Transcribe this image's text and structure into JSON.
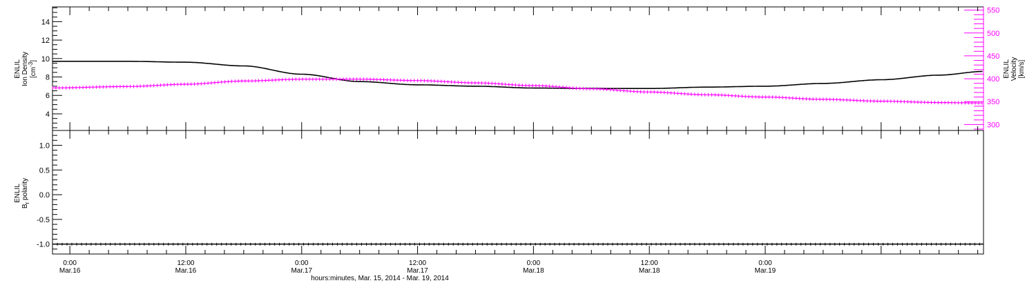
{
  "chart_data": [
    {
      "type": "line",
      "panel": "top",
      "y_label": [
        "ENLIL",
        "Ion Density",
        "[cm",
        "-3",
        "]"
      ],
      "y2_label": [
        "ENLIL",
        "Velocity",
        "[km/s]"
      ],
      "ylim": [
        2.2,
        15.6
      ],
      "y_ticks": [
        "4",
        "6",
        "8",
        "10",
        "12",
        "14"
      ],
      "y2lim": [
        287,
        557
      ],
      "y2_ticks": [
        "300",
        "350",
        "400",
        "450",
        "500",
        "550"
      ],
      "xlim_hours": [
        -1.8,
        94.6
      ],
      "series": [
        {
          "color": "#000000",
          "axis": "left",
          "x": [
            -1.8,
            6,
            12,
            18,
            24,
            30,
            36,
            42,
            48,
            54,
            60,
            66,
            72,
            78,
            84,
            90,
            94.6
          ],
          "y": [
            9.7,
            9.7,
            9.6,
            9.2,
            8.3,
            7.5,
            7.15,
            7.0,
            6.8,
            6.75,
            6.75,
            6.9,
            7.0,
            7.3,
            7.7,
            8.2,
            8.6
          ]
        },
        {
          "color": "#ff00ff",
          "axis": "right",
          "x": [
            -1.8,
            6,
            12,
            18,
            24,
            30,
            36,
            42,
            48,
            54,
            60,
            66,
            72,
            78,
            84,
            90,
            94.6
          ],
          "y": [
            380,
            383,
            388,
            395,
            399,
            399,
            396,
            391,
            385,
            378,
            371,
            365,
            360,
            355,
            351,
            348,
            347
          ]
        }
      ]
    },
    {
      "type": "line",
      "panel": "bottom",
      "y_label": [
        "ENLIL",
        "B",
        "r",
        " polarity"
      ],
      "ylim": [
        -1.2,
        1.3
      ],
      "y_ticks": [
        "-1.0",
        "-0.5",
        "0.0",
        "0.5",
        "1.0"
      ],
      "series": [
        {
          "color": "#000000",
          "x": [
            -1.8,
            94.6
          ],
          "y": [
            -1.0,
            -1.0
          ]
        }
      ],
      "x_ticks": [
        {
          "hour": 0,
          "time": "0:00",
          "date": "Mar.16"
        },
        {
          "hour": 12,
          "time": "12:00",
          "date": "Mar.16"
        },
        {
          "hour": 24,
          "time": "0:00",
          "date": "Mar.17"
        },
        {
          "hour": 36,
          "time": "12:00",
          "date": "Mar.17"
        },
        {
          "hour": 48,
          "time": "0:00",
          "date": "Mar.18"
        },
        {
          "hour": 60,
          "time": "12:00",
          "date": "Mar.18"
        },
        {
          "hour": 72,
          "time": "0:00",
          "date": "Mar.19"
        }
      ],
      "xlabel": "hours:minutes, Mar. 15, 2014 - Mar. 19, 2014"
    }
  ],
  "colors": {
    "density": "#000000",
    "velocity": "#ff00ff",
    "frame": "#000000"
  }
}
